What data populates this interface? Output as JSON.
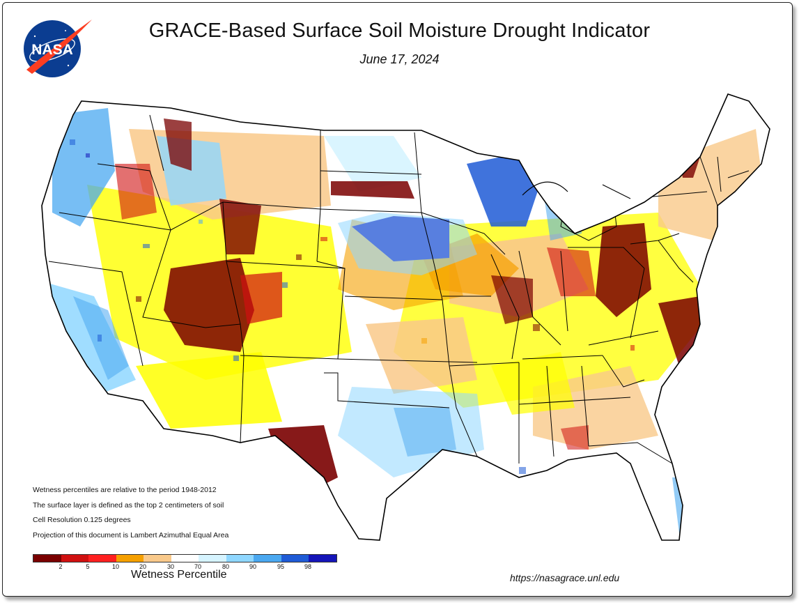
{
  "header": {
    "title": "GRACE-Based Surface Soil  Moisture Drought Indicator",
    "date": "June 17, 2024",
    "logo_text": "NASA"
  },
  "notes": [
    "Wetness percentiles are relative to the period 1948-2012",
    "The surface layer is defined as the top 2 centimeters of soil",
    "Cell Resolution 0.125 degrees",
    "Projection of this document is Lambert Azimuthal Equal Area"
  ],
  "legend": {
    "title": "Wetness Percentile",
    "colors": [
      "#7a0000",
      "#d01010",
      "#ff2020",
      "#f5a000",
      "#f9c98a",
      "#ffff00",
      "#ffffff",
      "#d6f4ff",
      "#8fd7ff",
      "#4aa8f0",
      "#1f5bd6",
      "#1515b8"
    ],
    "ticks": [
      "2",
      "5",
      "10",
      "20",
      "30",
      "70",
      "80",
      "90",
      "95",
      "98"
    ]
  },
  "footer": {
    "url": "https://nasagrace.unl.edu"
  },
  "colors": {
    "border": "#222222",
    "state_lines": "#000000",
    "nasa_blue": "#0b3d91",
    "nasa_red": "#fc3d21"
  }
}
